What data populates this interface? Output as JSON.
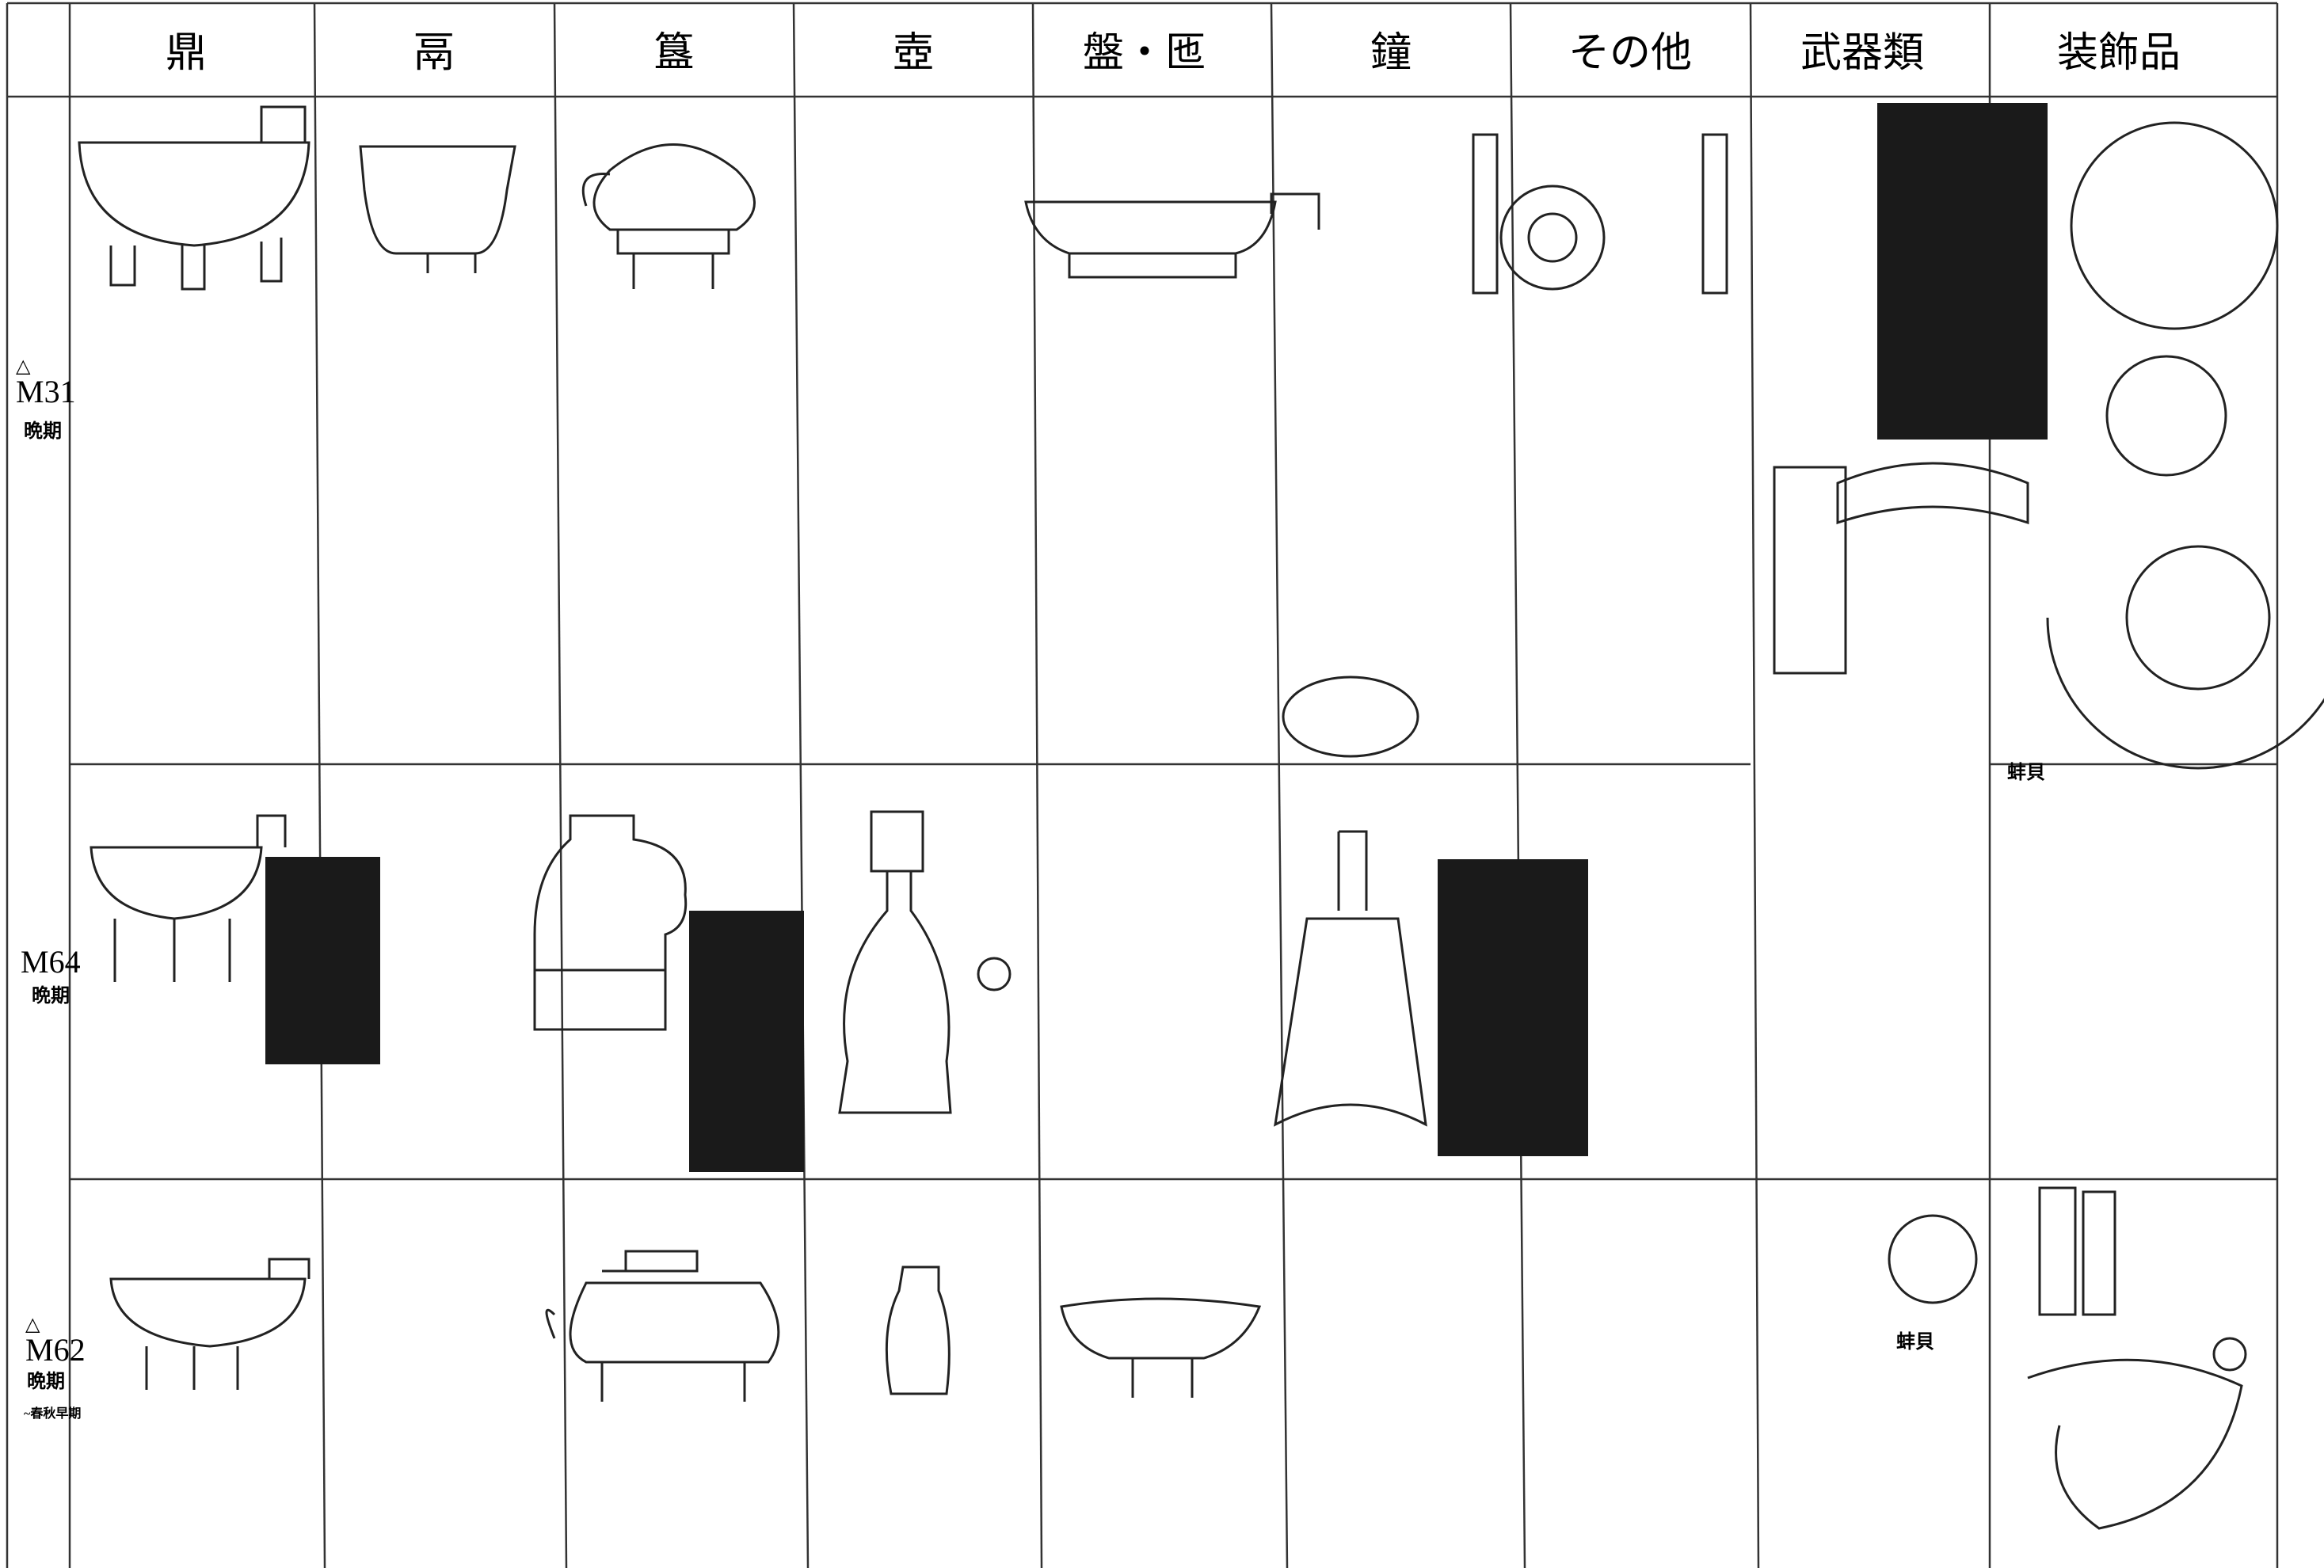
{
  "header": {
    "columns": [
      "鼎",
      "鬲",
      "簋",
      "壺",
      "盤・匜",
      "鐘",
      "その他",
      "武器類",
      "装飾品"
    ]
  },
  "rows": [
    {
      "mark": "△",
      "label": "M31",
      "period": "晩期"
    },
    {
      "label": "M64",
      "period": "晩期",
      "note": "蚌貝"
    },
    {
      "mark": "△",
      "label": "M62",
      "period": "晩期",
      "period_range": "~春秋早期",
      "note": "蚌貝"
    }
  ]
}
